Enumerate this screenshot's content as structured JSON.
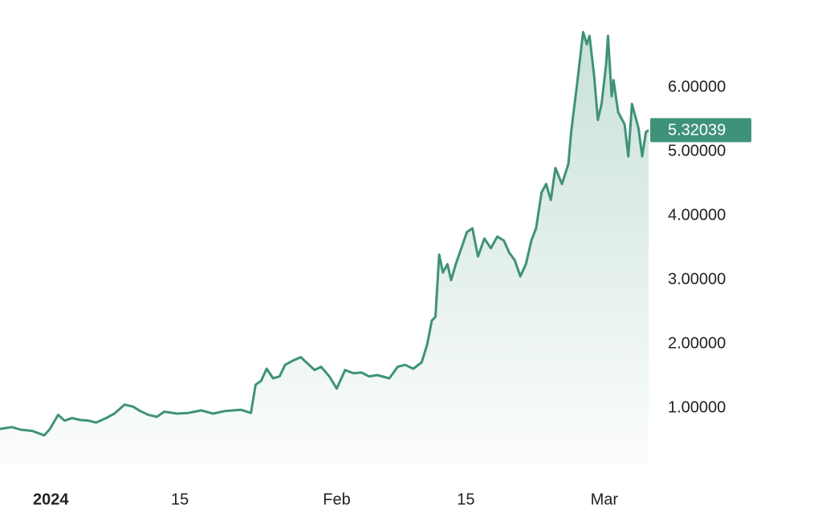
{
  "chart_data": {
    "type": "line",
    "x": [
      -5.5,
      -4.2,
      -3.3,
      -2.0,
      -0.7,
      -0.1,
      0.8,
      1.5,
      2.3,
      3.2,
      4.1,
      4.9,
      6.0,
      6.9,
      8.0,
      8.9,
      9.7,
      10.6,
      11.5,
      12.3,
      13.7,
      14.9,
      16.3,
      17.6,
      18.9,
      20.6,
      21.7,
      22.2,
      22.8,
      23.4,
      24.1,
      24.8,
      25.4,
      26.3,
      27.1,
      28.0,
      28.6,
      29.3,
      30.2,
      31.0,
      31.9,
      32.8,
      33.7,
      34.5,
      35.4,
      36.7,
      37.6,
      38.4,
      39.3,
      40.2,
      40.8,
      41.3,
      41.7,
      42.1,
      42.5,
      43.0,
      43.4,
      43.9,
      44.5,
      45.1,
      45.7,
      46.3,
      47.0,
      47.7,
      48.4,
      49.1,
      49.7,
      50.3,
      50.9,
      51.5,
      52.1,
      52.6,
      53.2,
      53.7,
      54.2,
      54.7,
      55.4,
      56.1,
      56.4,
      57.0,
      57.3,
      57.7,
      58.1,
      58.4,
      58.9,
      59.3,
      59.7,
      60.2,
      60.4,
      60.8,
      61.0,
      61.5,
      62.2,
      62.6,
      63.0,
      63.7,
      64.1,
      64.5,
      64.8
    ],
    "values": [
      0.66,
      0.69,
      0.65,
      0.63,
      0.56,
      0.66,
      0.88,
      0.79,
      0.83,
      0.8,
      0.79,
      0.76,
      0.83,
      0.9,
      1.04,
      1.01,
      0.94,
      0.88,
      0.85,
      0.93,
      0.9,
      0.91,
      0.95,
      0.9,
      0.94,
      0.96,
      0.91,
      1.35,
      1.41,
      1.6,
      1.45,
      1.48,
      1.66,
      1.73,
      1.78,
      1.66,
      1.58,
      1.63,
      1.48,
      1.29,
      1.58,
      1.53,
      1.54,
      1.48,
      1.5,
      1.45,
      1.63,
      1.66,
      1.6,
      1.7,
      1.98,
      2.35,
      2.41,
      3.38,
      3.1,
      3.23,
      2.98,
      3.23,
      3.48,
      3.73,
      3.79,
      3.35,
      3.63,
      3.48,
      3.66,
      3.6,
      3.41,
      3.29,
      3.04,
      3.23,
      3.6,
      3.79,
      4.35,
      4.48,
      4.23,
      4.73,
      4.48,
      4.79,
      5.29,
      5.98,
      6.35,
      6.85,
      6.66,
      6.79,
      6.16,
      5.48,
      5.73,
      6.35,
      6.79,
      5.85,
      6.1,
      5.6,
      5.41,
      4.91,
      5.73,
      5.35,
      4.91,
      5.29,
      5.32039
    ],
    "color": "#3f927a",
    "last_value": 5.32039,
    "xlim": [
      -5.5,
      64.8
    ],
    "xticks": [
      {
        "value": 0,
        "label": "2024"
      },
      {
        "value": 14,
        "label": "15"
      },
      {
        "value": 31,
        "label": "Feb"
      },
      {
        "value": 45,
        "label": "15"
      },
      {
        "value": 60,
        "label": "Mar"
      }
    ],
    "ylim": [
      0.1,
      7.35
    ],
    "yticks": [
      {
        "value": 1,
        "label": "1.00000"
      },
      {
        "value": 2,
        "label": "2.00000"
      },
      {
        "value": 3,
        "label": "3.00000"
      },
      {
        "value": 4,
        "label": "4.00000"
      },
      {
        "value": 5,
        "label": "5.00000"
      },
      {
        "value": 6,
        "label": "6.00000"
      }
    ]
  }
}
